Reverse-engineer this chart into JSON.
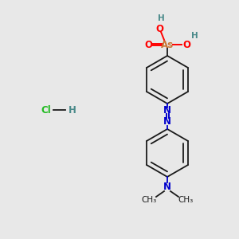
{
  "bg_color": "#e8e8e8",
  "bond_color": "#1a1a1a",
  "as_color": "#c87533",
  "o_color": "#ff0000",
  "n_color": "#0000cc",
  "h_color": "#4a8a8a",
  "cl_color": "#22bb22",
  "as_text": "As",
  "o_text": "O",
  "h_text": "H",
  "n_text": "N",
  "cl_text": "Cl",
  "me_text": "CH₃",
  "hcl_dash": "—"
}
